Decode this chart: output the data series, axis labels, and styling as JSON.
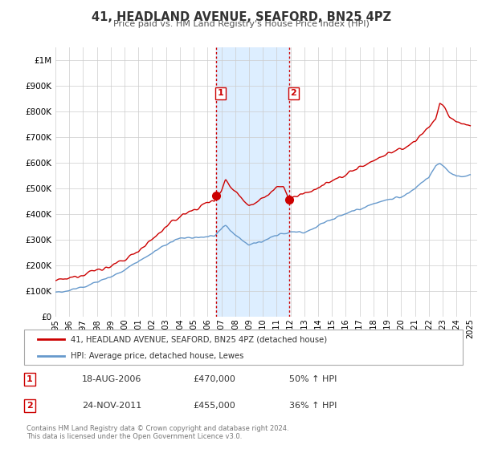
{
  "title": "41, HEADLAND AVENUE, SEAFORD, BN25 4PZ",
  "subtitle": "Price paid vs. HM Land Registry's House Price Index (HPI)",
  "legend_line1": "41, HEADLAND AVENUE, SEAFORD, BN25 4PZ (detached house)",
  "legend_line2": "HPI: Average price, detached house, Lewes",
  "footnote1": "Contains HM Land Registry data © Crown copyright and database right 2024.",
  "footnote2": "This data is licensed under the Open Government Licence v3.0.",
  "sale1_label": "1",
  "sale1_date": "18-AUG-2006",
  "sale1_price": "£470,000",
  "sale1_hpi": "50% ↑ HPI",
  "sale2_label": "2",
  "sale2_date": "24-NOV-2011",
  "sale2_price": "£455,000",
  "sale2_hpi": "36% ↑ HPI",
  "sale1_year": 2006.63,
  "sale2_year": 2011.9,
  "sale1_price_val": 470000,
  "sale2_price_val": 455000,
  "red_color": "#cc0000",
  "blue_color": "#6699cc",
  "shade_color": "#ddeeff",
  "grid_color": "#cccccc",
  "background_color": "#ffffff",
  "ylim": [
    0,
    1050000
  ],
  "xlim_start": 1995,
  "xlim_end": 2025.5,
  "yticks": [
    0,
    100000,
    200000,
    300000,
    400000,
    500000,
    600000,
    700000,
    800000,
    900000,
    1000000
  ],
  "ytick_labels": [
    "£0",
    "£100K",
    "£200K",
    "£300K",
    "£400K",
    "£500K",
    "£600K",
    "£700K",
    "£800K",
    "£900K",
    "£1M"
  ],
  "xticks": [
    1995,
    1996,
    1997,
    1998,
    1999,
    2000,
    2001,
    2002,
    2003,
    2004,
    2005,
    2006,
    2007,
    2008,
    2009,
    2010,
    2011,
    2012,
    2013,
    2014,
    2015,
    2016,
    2017,
    2018,
    2019,
    2020,
    2021,
    2022,
    2023,
    2024,
    2025
  ]
}
